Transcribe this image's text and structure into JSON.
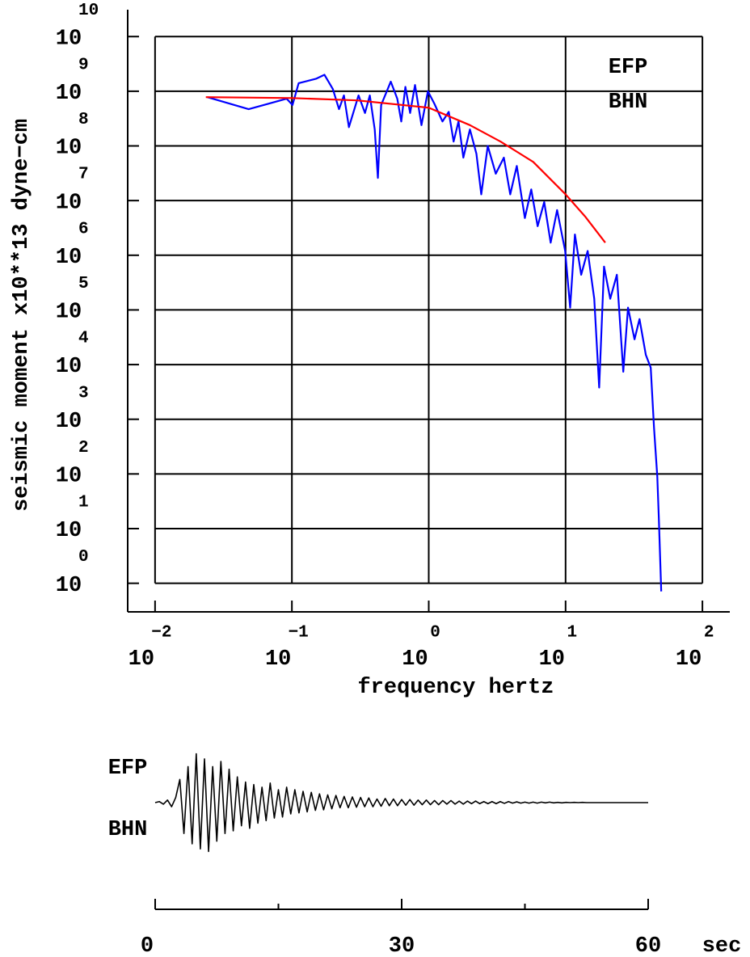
{
  "chart_data": [
    {
      "type": "line",
      "xscale": "log",
      "yscale": "log",
      "grid": true,
      "ylabel": "seismic moment x10**13 dyne−cm",
      "xlabel": "frequency  hertz",
      "annotations": [
        "EFP",
        "BHN"
      ],
      "xlim": [
        0.00631,
        158.5
      ],
      "ylim": [
        0.3,
        31000000000.0
      ],
      "xticks": [
        {
          "value": 0.01,
          "label": "10",
          "exponent": "−2"
        },
        {
          "value": 0.1,
          "label": "10",
          "exponent": "−1"
        },
        {
          "value": 1,
          "label": "10",
          "exponent": "0"
        },
        {
          "value": 10,
          "label": "10",
          "exponent": "1"
        },
        {
          "value": 100,
          "label": "10",
          "exponent": "2"
        }
      ],
      "yticks": [
        {
          "value": 1,
          "label": "10",
          "exponent": "0"
        },
        {
          "value": 10,
          "label": "10",
          "exponent": "1"
        },
        {
          "value": 100,
          "label": "10",
          "exponent": "2"
        },
        {
          "value": 1000,
          "label": "10",
          "exponent": "3"
        },
        {
          "value": 10000,
          "label": "10",
          "exponent": "4"
        },
        {
          "value": 100000,
          "label": "10",
          "exponent": "5"
        },
        {
          "value": 1000000,
          "label": "10",
          "exponent": "6"
        },
        {
          "value": 10000000,
          "label": "10",
          "exponent": "7"
        },
        {
          "value": 100000000,
          "label": "10",
          "exponent": "8"
        },
        {
          "value": 1000000000,
          "label": "10",
          "exponent": "9"
        },
        {
          "value": 10000000000,
          "label": "10",
          "exponent": "10"
        }
      ],
      "series": [
        {
          "color": "#0000ff",
          "x": [
            0.0241,
            0.0483,
            0.0916,
            0.101,
            0.112,
            0.151,
            0.173,
            0.199,
            0.221,
            0.24,
            0.261,
            0.307,
            0.342,
            0.371,
            0.403,
            0.425,
            0.449,
            0.528,
            0.589,
            0.63,
            0.675,
            0.731,
            0.794,
            0.885,
            0.986,
            1.1,
            1.26,
            1.4,
            1.52,
            1.65,
            1.79,
            2.0,
            2.23,
            2.42,
            2.7,
            3.09,
            3.54,
            3.94,
            4.4,
            5.04,
            5.61,
            6.25,
            6.98,
            7.78,
            8.67,
            9.93,
            10.8,
            11.7,
            13.0,
            14.5,
            16.2,
            17.6,
            19.1,
            21.2,
            23.7,
            26.4,
            28.6,
            31.9,
            34.7,
            38.6,
            41.9,
            44.3,
            46.8,
            48.0,
            49.3,
            50.0
          ],
          "values": [
            780000000.0,
            470000000.0,
            730000000.0,
            560000000.0,
            1400000000.0,
            1700000000.0,
            2000000000.0,
            1100000000.0,
            470000000.0,
            840000000.0,
            220000000.0,
            840000000.0,
            400000000.0,
            840000000.0,
            200000000.0,
            26000000.0,
            560000000.0,
            1500000000.0,
            730000000.0,
            280000000.0,
            1200000000.0,
            400000000.0,
            1300000000.0,
            240000000.0,
            1000000000.0,
            590000000.0,
            280000000.0,
            420000000.0,
            120000000.0,
            280000000.0,
            61000000.0,
            200000000.0,
            72000000.0,
            13000000.0,
            100000000.0,
            31000000.0,
            61000000.0,
            13000000.0,
            43000000.0,
            4800000.0,
            16000000.0,
            3400000.0,
            9400000.0,
            1700000.0,
            6700000.0,
            1200000.0,
            110000.0,
            2400000.0,
            440000.0,
            1200000.0,
            160000.0,
            3800.0,
            620000.0,
            160000.0,
            440000.0,
            7400.0,
            110000.0,
            29000.0,
            68000.0,
            15000.0,
            8800.0,
            690,
            89,
            16,
            2.1,
            0.71
          ]
        },
        {
          "color": "#ff0000",
          "x": [
            0.0235,
            0.1,
            0.3,
            1,
            2,
            3.35,
            5.8,
            10,
            14,
            19.5
          ],
          "values": [
            780000000.0,
            750000000.0,
            680000000.0,
            500000000.0,
            240000000.0,
            120000000.0,
            51000000.0,
            13000000.0,
            5000000.0,
            1700000.0
          ]
        }
      ]
    },
    {
      "type": "line",
      "xlabel": "sec",
      "annotations": [
        "EFP",
        "BHN"
      ],
      "xlim": [
        0,
        60
      ],
      "ylim": [
        -1.1,
        1.1
      ],
      "xticks": [
        0,
        30,
        60
      ],
      "xminor_ticks": [
        15,
        45
      ],
      "series": [
        {
          "color": "#000000",
          "x": [
            0,
            0.5,
            1,
            1.5,
            2,
            2.5,
            3,
            3.5,
            4,
            4.5,
            5,
            5.5,
            6,
            6.5,
            7,
            7.5,
            8,
            8.5,
            9,
            9.5,
            10,
            10.5,
            11,
            11.5,
            12,
            12.5,
            13,
            13.5,
            14,
            14.5,
            15,
            15.5,
            16,
            16.5,
            17,
            17.5,
            18,
            18.5,
            19,
            19.5,
            20,
            20.5,
            21,
            21.5,
            22,
            22.5,
            23,
            23.5,
            24,
            24.5,
            25,
            25.5,
            26,
            26.5,
            27,
            27.5,
            28,
            28.5,
            29,
            29.5,
            30,
            30.5,
            31,
            31.5,
            32,
            32.5,
            33,
            33.5,
            34,
            34.5,
            35,
            35.5,
            36,
            36.5,
            37,
            37.5,
            38,
            38.5,
            39,
            39.5,
            40,
            40.5,
            41,
            41.5,
            42,
            42.5,
            43,
            43.5,
            44,
            44.5,
            45,
            45.5,
            46,
            46.5,
            47,
            47.5,
            48,
            48.5,
            49,
            49.5,
            50,
            50.5,
            51,
            51.5,
            52,
            52.5,
            53,
            53.5,
            54,
            54.5,
            55,
            55.5,
            56,
            56.5,
            57,
            57.5,
            58,
            58.5,
            59,
            59.5,
            60
          ],
          "values": [
            0,
            0.02,
            -0.03,
            0.05,
            -0.08,
            0.1,
            0.45,
            -0.6,
            0.7,
            -0.8,
            0.95,
            -0.9,
            0.85,
            -0.95,
            0.7,
            -0.75,
            0.8,
            -0.6,
            0.65,
            -0.55,
            0.5,
            -0.45,
            0.4,
            -0.5,
            0.35,
            -0.4,
            0.3,
            -0.35,
            0.38,
            -0.3,
            0.25,
            -0.28,
            0.3,
            -0.22,
            0.25,
            -0.2,
            0.22,
            -0.18,
            0.2,
            -0.15,
            0.17,
            -0.14,
            0.15,
            -0.12,
            0.14,
            -0.1,
            0.12,
            -0.1,
            0.11,
            -0.09,
            0.1,
            -0.08,
            0.09,
            -0.08,
            0.07,
            -0.07,
            0.08,
            -0.06,
            0.07,
            -0.06,
            0.06,
            -0.05,
            0.06,
            -0.05,
            0.05,
            -0.04,
            0.05,
            -0.04,
            0.04,
            -0.04,
            0.04,
            -0.03,
            0.04,
            -0.03,
            0.03,
            -0.03,
            0.03,
            -0.02,
            0.03,
            -0.02,
            0.02,
            -0.02,
            0.02,
            -0.02,
            0.02,
            -0.015,
            0.02,
            -0.01,
            0.015,
            -0.01,
            0.01,
            -0.01,
            0.01,
            -0.01,
            0.01,
            -0.005,
            0.01,
            -0.005,
            0.005,
            -0.005,
            0.005,
            0,
            0.005,
            0,
            0.005,
            0,
            0,
            0,
            0,
            0,
            0,
            0,
            0,
            0,
            0,
            0,
            0,
            0,
            0,
            0,
            0
          ]
        }
      ]
    }
  ]
}
